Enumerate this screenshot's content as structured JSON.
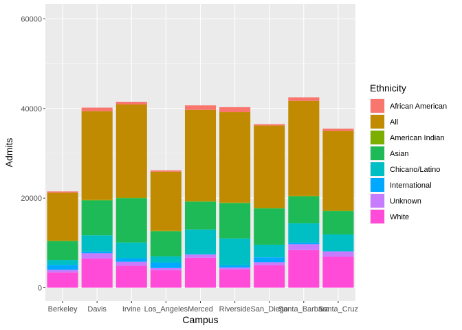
{
  "chart_data": {
    "type": "bar",
    "stacked": true,
    "xlabel": "Campus",
    "ylabel": "Admits",
    "ylim": [
      0,
      62000
    ],
    "yticks": [
      0,
      20000,
      40000,
      60000
    ],
    "categories": [
      "Berkeley",
      "Davis",
      "Irvine",
      "Los_Angeles",
      "Merced",
      "Riverside",
      "San_Diego",
      "Santa_Barbara",
      "Santa_Cruz"
    ],
    "legend": {
      "title": "Ethnicity",
      "position": "right"
    },
    "grid": true,
    "background": "#ebebeb",
    "series": [
      {
        "name": "White",
        "color": "#ff4bd8",
        "values": [
          3400,
          6500,
          4900,
          3900,
          6700,
          4100,
          5000,
          8400,
          6900
        ]
      },
      {
        "name": "Unknown",
        "color": "#c77cff",
        "values": [
          600,
          1200,
          900,
          500,
          700,
          400,
          700,
          1300,
          1200
        ]
      },
      {
        "name": "International",
        "color": "#00a9ff",
        "values": [
          1100,
          400,
          800,
          1200,
          100,
          500,
          1100,
          400,
          100
        ]
      },
      {
        "name": "Chicano/Latino",
        "color": "#00bfc4",
        "values": [
          1100,
          3600,
          3500,
          1400,
          5500,
          6000,
          2800,
          4300,
          3700
        ]
      },
      {
        "name": "Asian",
        "color": "#1dba57",
        "values": [
          4200,
          7800,
          9900,
          5600,
          6200,
          7900,
          8100,
          6000,
          5200
        ]
      },
      {
        "name": "American Indian",
        "color": "#7cae00",
        "values": [
          100,
          100,
          100,
          100,
          100,
          100,
          100,
          100,
          100
        ]
      },
      {
        "name": "All",
        "color": "#c08b00",
        "values": [
          10700,
          19800,
          20800,
          13200,
          20400,
          20200,
          18400,
          21200,
          17800
        ]
      },
      {
        "name": "African American",
        "color": "#f8766d",
        "values": [
          300,
          800,
          600,
          300,
          1000,
          1100,
          300,
          800,
          500
        ]
      }
    ]
  }
}
